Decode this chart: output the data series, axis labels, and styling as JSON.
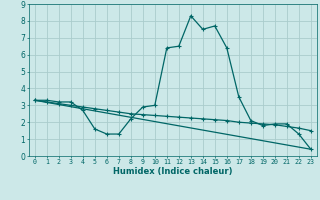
{
  "xlabel": "Humidex (Indice chaleur)",
  "bg_color": "#cce8e8",
  "grid_color": "#aacccc",
  "line_color": "#006666",
  "xlim": [
    -0.5,
    23.5
  ],
  "ylim": [
    0,
    9
  ],
  "xticks": [
    0,
    1,
    2,
    3,
    4,
    5,
    6,
    7,
    8,
    9,
    10,
    11,
    12,
    13,
    14,
    15,
    16,
    17,
    18,
    19,
    20,
    21,
    22,
    23
  ],
  "yticks": [
    0,
    1,
    2,
    3,
    4,
    5,
    6,
    7,
    8,
    9
  ],
  "series1_x": [
    0,
    1,
    2,
    3,
    4,
    5,
    6,
    7,
    8,
    9,
    10,
    11,
    12,
    13,
    14,
    15,
    16,
    17,
    18,
    19,
    20,
    21,
    22,
    23
  ],
  "series1_y": [
    3.3,
    3.3,
    3.2,
    3.2,
    2.7,
    1.6,
    1.3,
    1.3,
    2.2,
    2.9,
    3.0,
    6.4,
    6.5,
    8.3,
    7.5,
    7.7,
    6.4,
    3.5,
    2.1,
    1.8,
    1.9,
    1.9,
    1.3,
    0.4
  ],
  "series2_x": [
    0,
    1,
    2,
    3,
    4,
    5,
    6,
    7,
    8,
    9,
    10,
    11,
    12,
    13,
    14,
    15,
    16,
    17,
    18,
    19,
    20,
    21,
    22,
    23
  ],
  "series2_y": [
    3.3,
    3.2,
    3.1,
    3.0,
    2.9,
    2.8,
    2.7,
    2.6,
    2.5,
    2.45,
    2.4,
    2.35,
    2.3,
    2.25,
    2.2,
    2.15,
    2.1,
    2.0,
    1.95,
    1.9,
    1.85,
    1.75,
    1.65,
    1.5
  ],
  "series3_x": [
    0,
    23
  ],
  "series3_y": [
    3.3,
    0.4
  ],
  "marker": "+"
}
